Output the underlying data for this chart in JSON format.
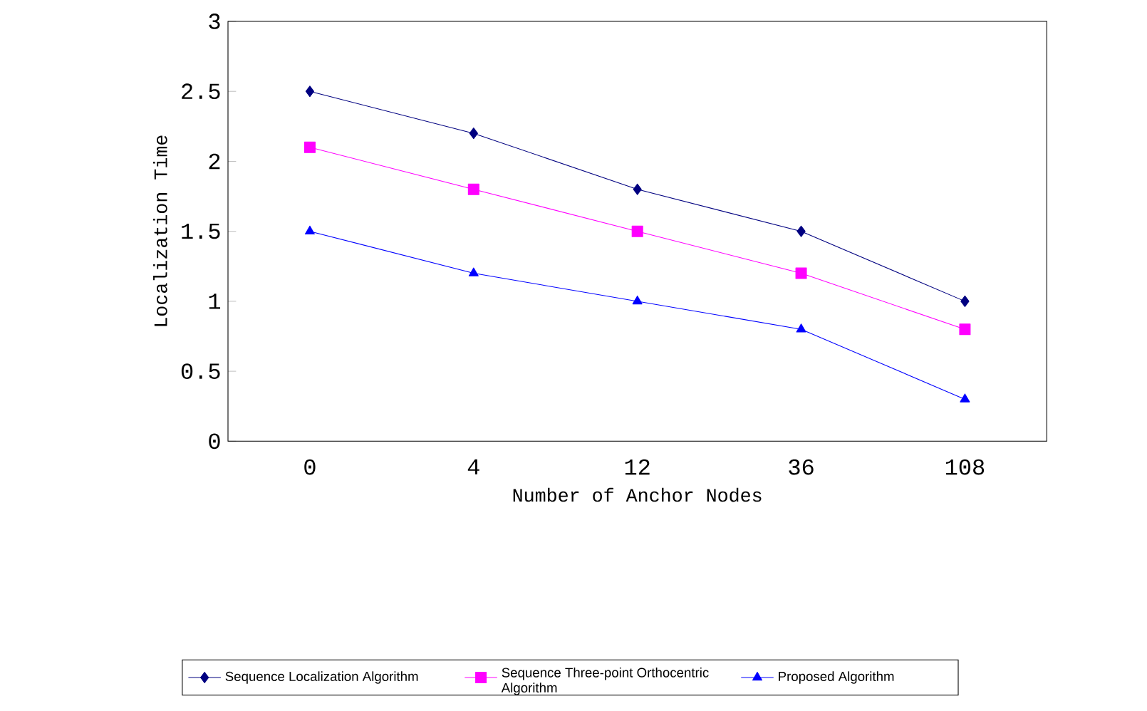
{
  "chart_data": {
    "type": "line",
    "xlabel": "Number of Anchor Nodes",
    "ylabel": "Localization Time",
    "categories": [
      "0",
      "4",
      "12",
      "36",
      "108"
    ],
    "series": [
      {
        "name": "Sequence Localization Algorithm",
        "color": "#000080",
        "marker": "diamond",
        "values": [
          2.5,
          2.2,
          1.8,
          1.5,
          1.0
        ]
      },
      {
        "name": "Sequence Three-point Orthocentric Algorithm",
        "color": "#ff00ff",
        "marker": "square",
        "values": [
          2.1,
          1.8,
          1.5,
          1.2,
          0.8
        ]
      },
      {
        "name": "Proposed Algorithm",
        "color": "#0000ff",
        "marker": "triangle",
        "values": [
          1.5,
          1.2,
          1.0,
          0.8,
          0.3
        ]
      }
    ],
    "ylim": [
      0,
      3
    ],
    "yticks": [
      0,
      0.5,
      1,
      1.5,
      2,
      2.5,
      3
    ],
    "grid": false,
    "legend": "bottom",
    "line_style": "solid"
  }
}
